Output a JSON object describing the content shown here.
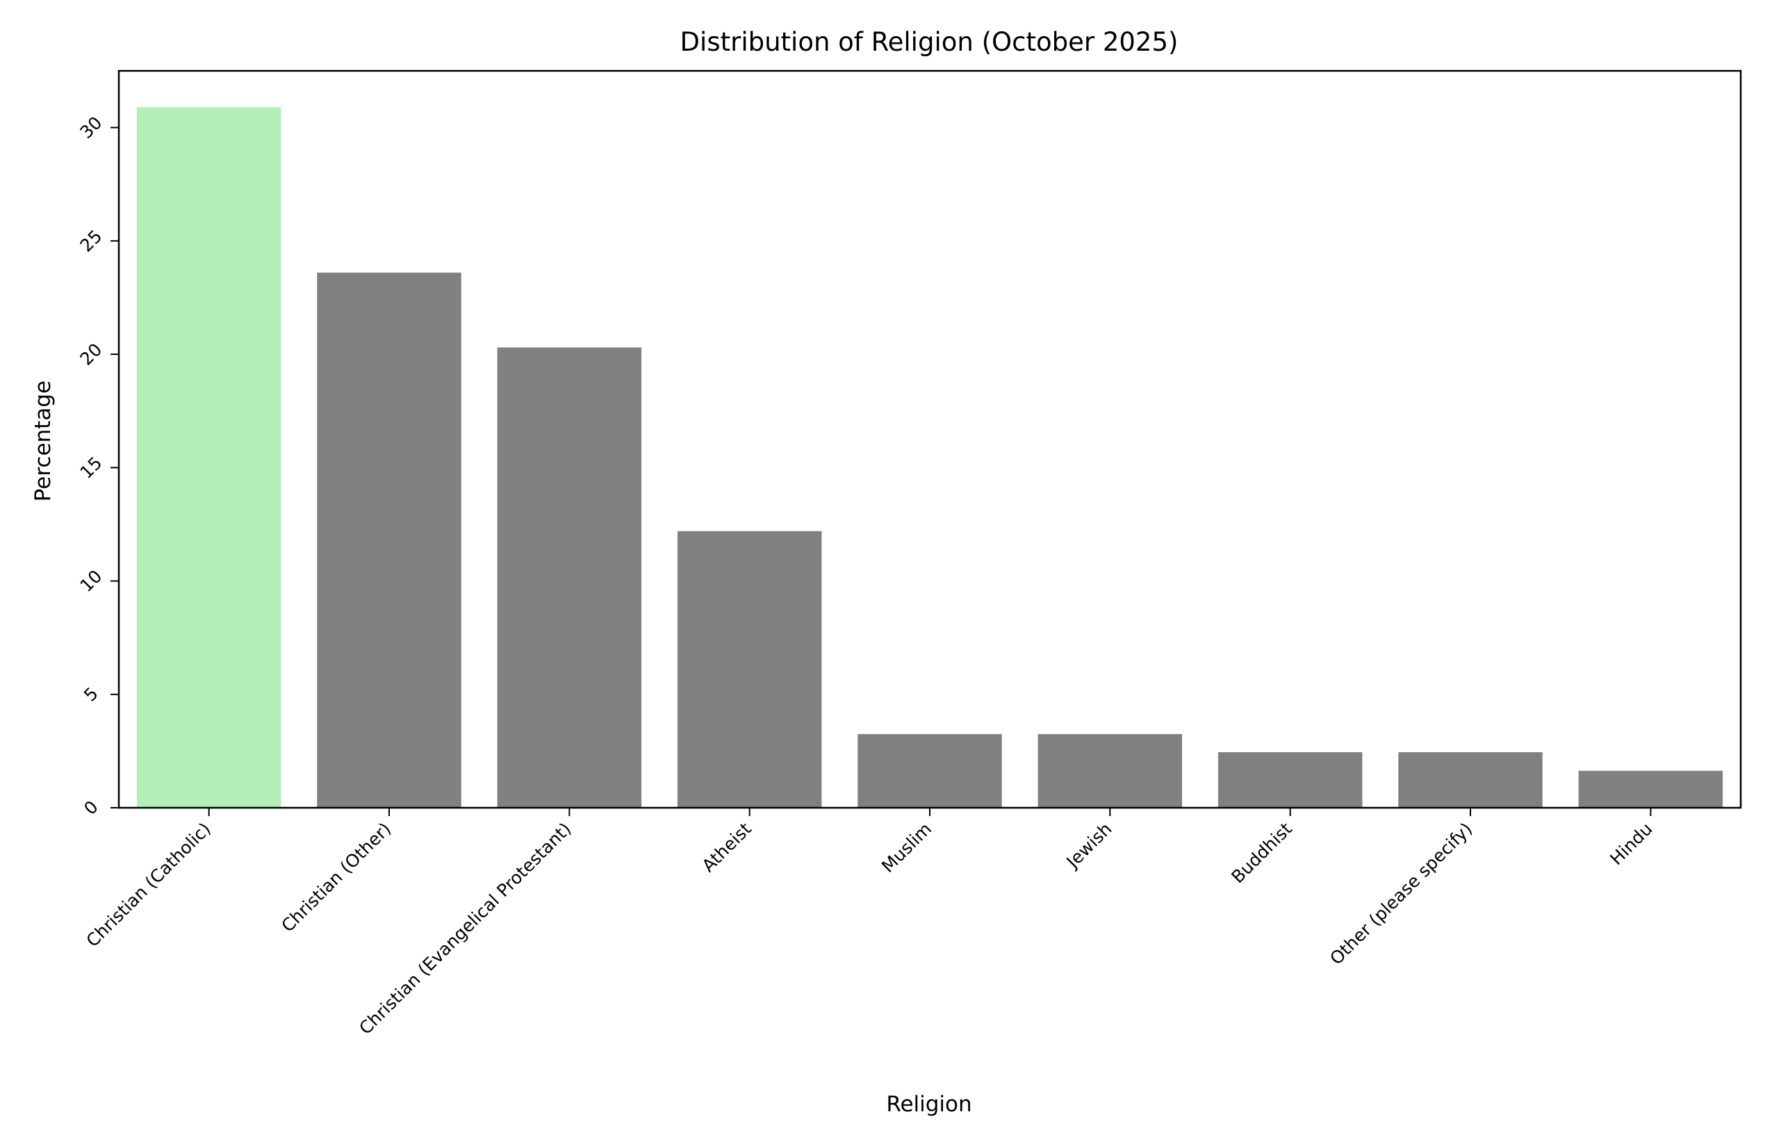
{
  "chart_data": {
    "type": "bar",
    "title": "Distribution of Religion (October 2025)",
    "xlabel": "Religion",
    "ylabel": "Percentage",
    "categories": [
      "Christian (Catholic)",
      "Christian (Other)",
      "Christian (Evangelical Protestant)",
      "Atheist",
      "Muslim",
      "Jewish",
      "Buddhist",
      "Other (please specify)",
      "Hindu"
    ],
    "values": [
      30.9,
      23.6,
      20.3,
      12.2,
      3.25,
      3.25,
      2.45,
      2.45,
      1.63
    ],
    "ylim": [
      0,
      32.5
    ],
    "yticks": [
      0,
      5,
      10,
      15,
      20,
      25,
      30
    ],
    "grid": false,
    "legend": "none",
    "colors": {
      "highlight": "#b3eeb6",
      "bar": "#808080",
      "axis": "#000000"
    },
    "highlight_index": 0
  }
}
